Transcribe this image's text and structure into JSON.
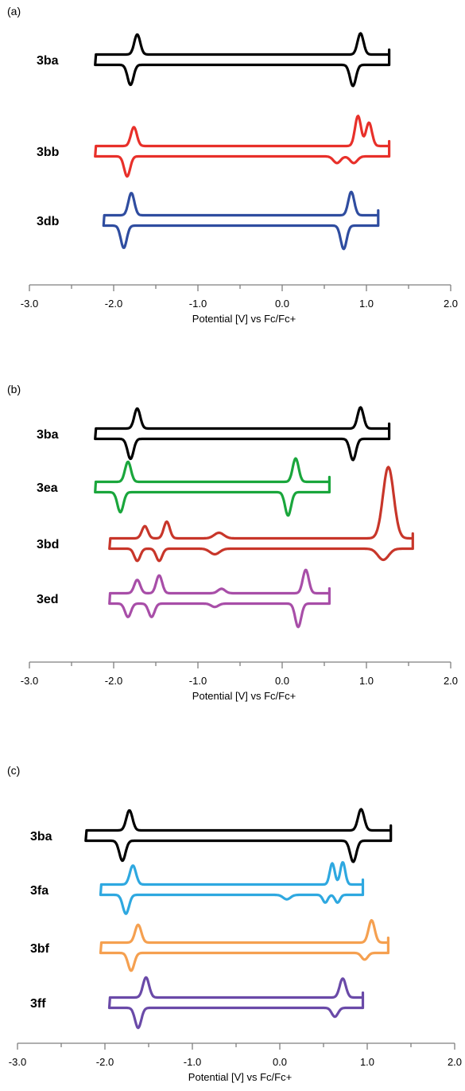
{
  "chart_data": [
    {
      "type": "line",
      "panel": "(a)",
      "xlabel": "Potential [V] vs Fc/Fc+",
      "xlim": [
        -3.0,
        2.0
      ],
      "xticks": [
        "-3.0",
        "-2.0",
        "-1.0",
        "0.0",
        "1.0",
        "2.0"
      ],
      "series": [
        {
          "name": "3ba",
          "color": "#000000",
          "start": -2.22,
          "end": 1.27,
          "baseline": 0,
          "peaks": [
            {
              "e": -1.72,
              "h": 0.9,
              "w": 0.05
            },
            {
              "e": -1.8,
              "h": -0.9,
              "w": 0.05
            },
            {
              "e": 0.93,
              "h": 0.95,
              "w": 0.05
            },
            {
              "e": 0.84,
              "h": -0.95,
              "w": 0.05
            }
          ]
        },
        {
          "name": "3bb",
          "color": "#e8302a",
          "start": -2.22,
          "end": 1.27,
          "baseline": 0,
          "peaks": [
            {
              "e": -1.76,
              "h": 0.85,
              "w": 0.05
            },
            {
              "e": -1.84,
              "h": -0.9,
              "w": 0.05
            },
            {
              "e": 0.9,
              "h": 1.35,
              "w": 0.05
            },
            {
              "e": 1.03,
              "h": 1.05,
              "w": 0.05
            },
            {
              "e": 0.65,
              "h": -0.3,
              "w": 0.06
            },
            {
              "e": 0.85,
              "h": -0.3,
              "w": 0.06
            }
          ]
        },
        {
          "name": "3db",
          "color": "#2f4da0",
          "start": -2.12,
          "end": 1.14,
          "baseline": 0,
          "peaks": [
            {
              "e": -1.79,
              "h": 1.0,
              "w": 0.05
            },
            {
              "e": -1.88,
              "h": -1.0,
              "w": 0.05
            },
            {
              "e": 0.82,
              "h": 1.05,
              "w": 0.05
            },
            {
              "e": 0.73,
              "h": -1.05,
              "w": 0.05
            }
          ]
        }
      ]
    },
    {
      "type": "line",
      "panel": "(b)",
      "xlabel": "Potential [V] vs Fc/Fc+",
      "xlim": [
        -3.0,
        2.0
      ],
      "xticks": [
        "-3.0",
        "-2.0",
        "-1.0",
        "0.0",
        "1.0",
        "2.0"
      ],
      "series": [
        {
          "name": "3ba",
          "color": "#000000",
          "start": -2.22,
          "end": 1.27,
          "baseline": 0,
          "peaks": [
            {
              "e": -1.72,
              "h": 0.9,
              "w": 0.05
            },
            {
              "e": -1.8,
              "h": -0.9,
              "w": 0.05
            },
            {
              "e": 0.93,
              "h": 0.95,
              "w": 0.05
            },
            {
              "e": 0.84,
              "h": -0.95,
              "w": 0.05
            }
          ]
        },
        {
          "name": "3ea",
          "color": "#1aa63c",
          "start": -2.22,
          "end": 0.56,
          "baseline": 0,
          "peaks": [
            {
              "e": -1.83,
              "h": 0.9,
              "w": 0.05
            },
            {
              "e": -1.92,
              "h": -0.9,
              "w": 0.05
            },
            {
              "e": 0.16,
              "h": 1.05,
              "w": 0.05
            },
            {
              "e": 0.07,
              "h": -1.05,
              "w": 0.05
            }
          ]
        },
        {
          "name": "3bd",
          "color": "#c8362a",
          "start": -2.05,
          "end": 1.55,
          "baseline": 0,
          "peaks": [
            {
              "e": -1.63,
              "h": 0.55,
              "w": 0.05
            },
            {
              "e": -1.37,
              "h": 0.75,
              "w": 0.05
            },
            {
              "e": -1.72,
              "h": -0.55,
              "w": 0.05
            },
            {
              "e": -1.46,
              "h": -0.55,
              "w": 0.05
            },
            {
              "e": -0.75,
              "h": 0.25,
              "w": 0.08
            },
            {
              "e": -0.8,
              "h": -0.25,
              "w": 0.08
            },
            {
              "e": 1.26,
              "h": 3.2,
              "w": 0.09
            },
            {
              "e": 1.2,
              "h": -0.5,
              "w": 0.09
            }
          ]
        },
        {
          "name": "3ed",
          "color": "#a84ea8",
          "start": -2.05,
          "end": 0.56,
          "baseline": 0,
          "peaks": [
            {
              "e": -1.72,
              "h": 0.6,
              "w": 0.05
            },
            {
              "e": -1.46,
              "h": 0.8,
              "w": 0.05
            },
            {
              "e": -1.83,
              "h": -0.6,
              "w": 0.05
            },
            {
              "e": -1.55,
              "h": -0.6,
              "w": 0.05
            },
            {
              "e": -0.72,
              "h": 0.2,
              "w": 0.06
            },
            {
              "e": -0.8,
              "h": -0.15,
              "w": 0.06
            },
            {
              "e": 0.28,
              "h": 1.05,
              "w": 0.05
            },
            {
              "e": 0.19,
              "h": -1.05,
              "w": 0.05
            }
          ]
        }
      ]
    },
    {
      "type": "line",
      "panel": "(c)",
      "xlabel": "Potential [V] vs Fc/Fc+",
      "xlim": [
        -3.0,
        2.0
      ],
      "xticks": [
        "-3.0",
        "-2.0",
        "-1.0",
        "0.0",
        "1.0",
        "2.0"
      ],
      "series": [
        {
          "name": "3ba",
          "color": "#000000",
          "start": -2.22,
          "end": 1.27,
          "baseline": 0,
          "peaks": [
            {
              "e": -1.72,
              "h": 0.9,
              "w": 0.05
            },
            {
              "e": -1.8,
              "h": -0.9,
              "w": 0.05
            },
            {
              "e": 0.93,
              "h": 0.95,
              "w": 0.05
            },
            {
              "e": 0.84,
              "h": -0.95,
              "w": 0.05
            }
          ]
        },
        {
          "name": "3fa",
          "color": "#2ea8e0",
          "start": -2.05,
          "end": 0.95,
          "baseline": 0,
          "peaks": [
            {
              "e": -1.68,
              "h": 0.85,
              "w": 0.05
            },
            {
              "e": -1.76,
              "h": -0.85,
              "w": 0.05
            },
            {
              "e": 0.6,
              "h": 0.95,
              "w": 0.04
            },
            {
              "e": 0.72,
              "h": 1.0,
              "w": 0.04
            },
            {
              "e": 0.52,
              "h": -0.35,
              "w": 0.04
            },
            {
              "e": 0.66,
              "h": -0.35,
              "w": 0.04
            },
            {
              "e": 0.08,
              "h": -0.2,
              "w": 0.06
            }
          ]
        },
        {
          "name": "3bf",
          "color": "#f5a050",
          "start": -2.05,
          "end": 1.24,
          "baseline": 0,
          "peaks": [
            {
              "e": -1.62,
              "h": 0.8,
              "w": 0.05
            },
            {
              "e": -1.7,
              "h": -0.8,
              "w": 0.05
            },
            {
              "e": 1.05,
              "h": 1.0,
              "w": 0.05
            },
            {
              "e": 0.97,
              "h": -0.3,
              "w": 0.05
            }
          ]
        },
        {
          "name": "3ff",
          "color": "#6a4aa8",
          "start": -1.95,
          "end": 0.95,
          "baseline": 0,
          "peaks": [
            {
              "e": -1.53,
              "h": 0.9,
              "w": 0.05
            },
            {
              "e": -1.62,
              "h": -0.9,
              "w": 0.05
            },
            {
              "e": 0.72,
              "h": 0.85,
              "w": 0.05
            },
            {
              "e": 0.63,
              "h": -0.4,
              "w": 0.05
            }
          ]
        }
      ]
    }
  ]
}
